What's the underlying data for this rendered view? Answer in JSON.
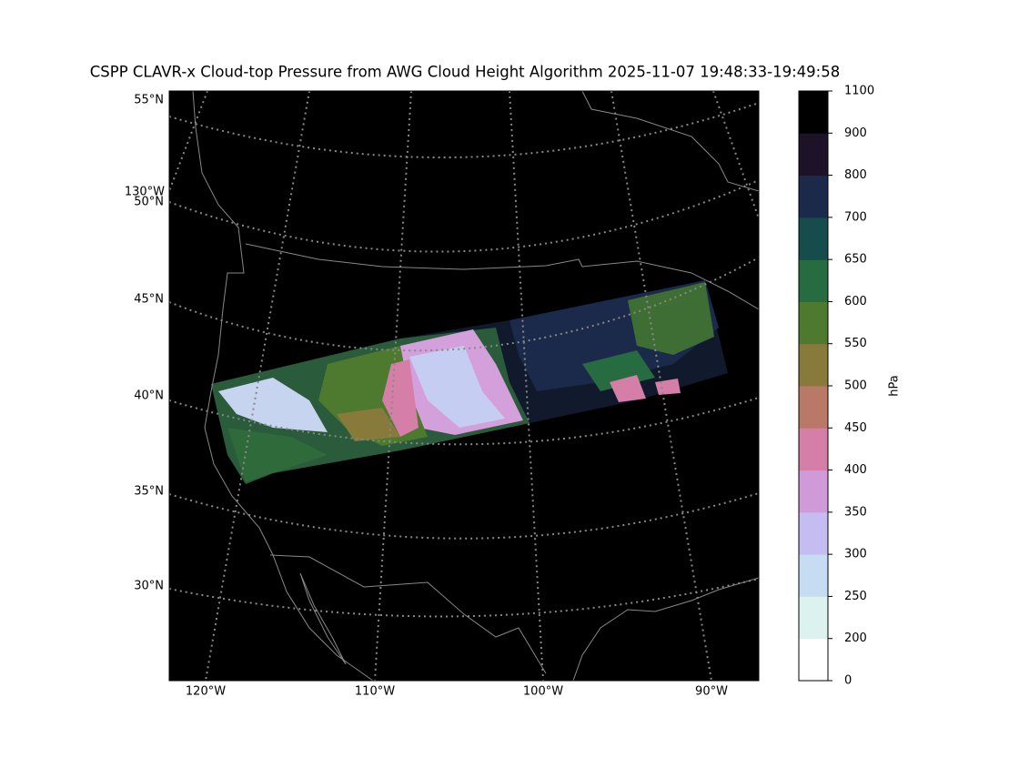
{
  "title": "CSPP CLAVR-x Cloud-top Pressure from AWG Cloud Height Algorithm 2025-11-07 19:48:33-19:49:58",
  "lat_labels": [
    "55°N",
    "50°N",
    "45°N",
    "40°N",
    "35°N",
    "30°N"
  ],
  "lon_labels": [
    "130°W",
    "120°W",
    "110°W",
    "100°W",
    "90°W"
  ],
  "colorbar": {
    "label": "hPa",
    "ticks": [
      0,
      200,
      250,
      300,
      350,
      400,
      450,
      500,
      550,
      600,
      650,
      700,
      800,
      900,
      1100
    ],
    "colors": [
      "#ffffff",
      "#dcf2ee",
      "#c6dcf2",
      "#c5bdf2",
      "#d09ad8",
      "#d57fa8",
      "#b97868",
      "#877a3a",
      "#4e7a30",
      "#276b40",
      "#164c4b",
      "#1b2a4a",
      "#1e1228",
      "#000000"
    ]
  }
}
